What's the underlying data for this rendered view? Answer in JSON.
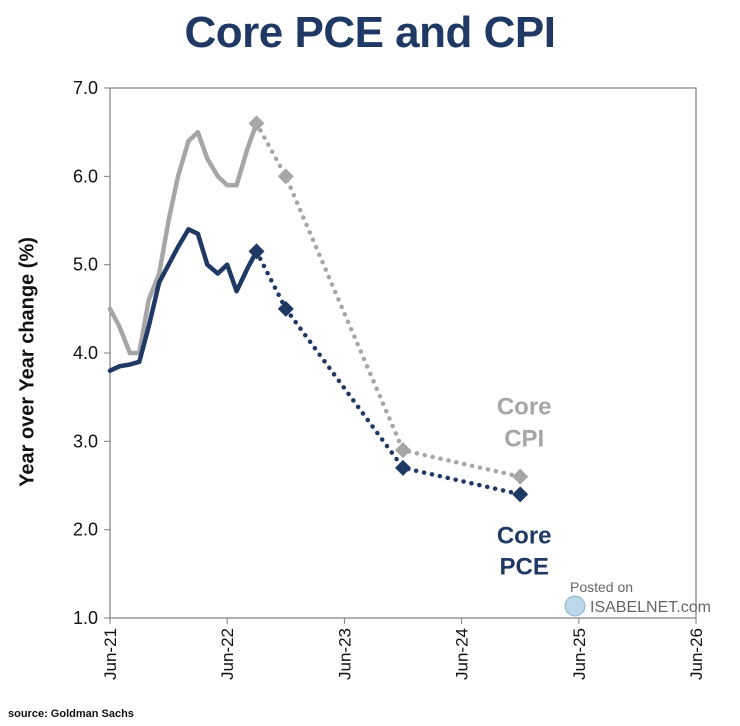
{
  "title": "Core PCE and CPI",
  "source": "source: Goldman Sachs",
  "watermark": {
    "line1": "Posted on",
    "line2": "ISABELNET.com"
  },
  "chart_data": {
    "type": "line",
    "title": "Core PCE and CPI",
    "ylabel": "Year over Year change (%)",
    "xlabel": "",
    "ylim": [
      1.0,
      7.0
    ],
    "yticks": [
      "1.0",
      "2.0",
      "3.0",
      "4.0",
      "5.0",
      "6.0",
      "7.0"
    ],
    "xlim": [
      2021.5,
      2026.5
    ],
    "xticks": [
      {
        "x": 2021.5,
        "label": "Jun-21"
      },
      {
        "x": 2022.5,
        "label": "Jun-22"
      },
      {
        "x": 2023.5,
        "label": "Jun-23"
      },
      {
        "x": 2024.5,
        "label": "Jun-24"
      },
      {
        "x": 2025.5,
        "label": "Jun-25"
      },
      {
        "x": 2026.5,
        "label": "Jun-26"
      }
    ],
    "series": [
      {
        "name": "Core CPI",
        "label_lines": [
          "Core",
          "CPI"
        ],
        "color": "#a6a6a6",
        "actual": [
          [
            2021.5,
            4.5
          ],
          [
            2021.58,
            4.3
          ],
          [
            2021.67,
            4.0
          ],
          [
            2021.75,
            4.0
          ],
          [
            2021.83,
            4.6
          ],
          [
            2021.92,
            4.9
          ],
          [
            2022.0,
            5.5
          ],
          [
            2022.08,
            6.0
          ],
          [
            2022.17,
            6.4
          ],
          [
            2022.25,
            6.5
          ],
          [
            2022.33,
            6.2
          ],
          [
            2022.42,
            6.0
          ],
          [
            2022.5,
            5.9
          ],
          [
            2022.58,
            5.9
          ],
          [
            2022.67,
            6.3
          ],
          [
            2022.75,
            6.6
          ]
        ],
        "forecast": [
          [
            2022.75,
            6.6
          ],
          [
            2023.0,
            6.0
          ],
          [
            2024.0,
            2.9
          ],
          [
            2025.0,
            2.6
          ]
        ]
      },
      {
        "name": "Core PCE",
        "label_lines": [
          "Core",
          "PCE"
        ],
        "color": "#1f3864",
        "actual": [
          [
            2021.5,
            3.8
          ],
          [
            2021.58,
            3.85
          ],
          [
            2021.67,
            3.87
          ],
          [
            2021.75,
            3.9
          ],
          [
            2021.83,
            4.3
          ],
          [
            2021.92,
            4.8
          ],
          [
            2022.0,
            5.0
          ],
          [
            2022.08,
            5.2
          ],
          [
            2022.17,
            5.4
          ],
          [
            2022.25,
            5.35
          ],
          [
            2022.33,
            5.0
          ],
          [
            2022.42,
            4.9
          ],
          [
            2022.5,
            5.0
          ],
          [
            2022.58,
            4.7
          ],
          [
            2022.67,
            4.95
          ],
          [
            2022.75,
            5.15
          ]
        ],
        "forecast": [
          [
            2022.75,
            5.15
          ],
          [
            2023.0,
            4.5
          ],
          [
            2024.0,
            2.7
          ],
          [
            2025.0,
            2.4
          ]
        ]
      }
    ],
    "legend": "inline-right"
  }
}
